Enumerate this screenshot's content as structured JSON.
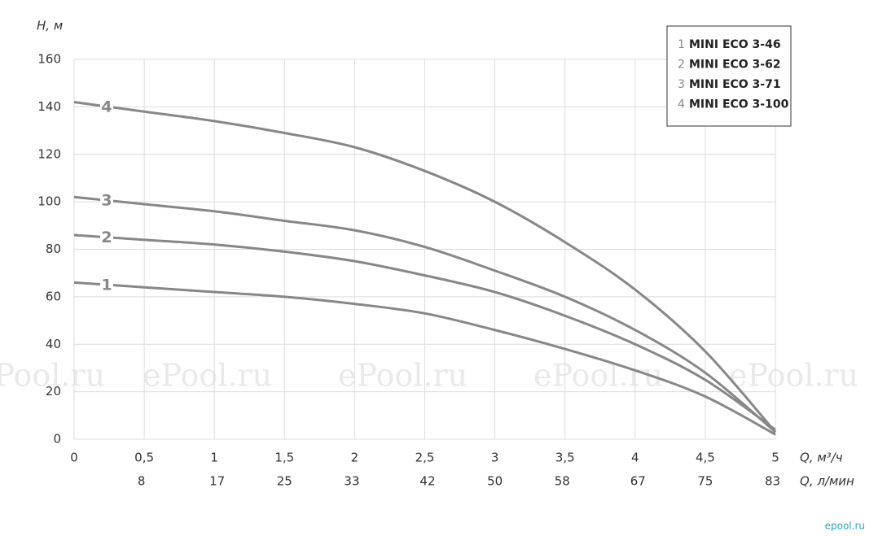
{
  "chart_data": {
    "type": "line",
    "ylabel": "H, м",
    "xlabel": "Q, м³/ч",
    "x2label": "Q, л/мин",
    "x": [
      0,
      0.5,
      1,
      1.5,
      2,
      2.5,
      3,
      3.5,
      4,
      4.5,
      5
    ],
    "series": [
      {
        "name": "MINI ECO 3-46",
        "label": "1",
        "color": "#878787",
        "values": [
          66,
          64,
          62,
          60,
          57,
          53,
          46,
          38,
          29,
          18,
          2
        ]
      },
      {
        "name": "MINI ECO 3-62",
        "label": "2",
        "color": "#878787",
        "values": [
          86,
          84,
          82,
          79,
          75,
          69,
          62,
          52,
          40,
          25,
          4
        ]
      },
      {
        "name": "MINI ECO 3-71",
        "label": "3",
        "color": "#878787",
        "values": [
          102,
          99,
          96,
          92,
          88,
          81,
          71,
          60,
          46,
          28,
          3
        ]
      },
      {
        "name": "MINI ECO 3-100",
        "label": "4",
        "color": "#878787",
        "values": [
          142,
          138,
          134,
          129,
          123,
          113,
          100,
          83,
          63,
          37,
          3
        ]
      }
    ],
    "xlim": [
      0,
      5
    ],
    "xticks": [
      0,
      {
        "value": 0.5,
        "label": "0,5"
      },
      1,
      {
        "value": 1.5,
        "label": "1,5"
      },
      2,
      {
        "value": 2.5,
        "label": "2,5"
      },
      3,
      {
        "value": 3.5,
        "label": "3,5"
      },
      4,
      {
        "value": 4.5,
        "label": "4,5"
      },
      5
    ],
    "x2lim": [
      0,
      83.33
    ],
    "x2ticks": [
      8,
      17,
      25,
      33,
      42,
      50,
      58,
      67,
      75,
      83
    ],
    "ylim": [
      0,
      160
    ],
    "yticks": [
      0,
      20,
      40,
      60,
      80,
      100,
      120,
      140,
      160
    ],
    "grid": true,
    "legend": "top-right"
  },
  "watermark": "ePool.ru",
  "logo": "epool.ru"
}
